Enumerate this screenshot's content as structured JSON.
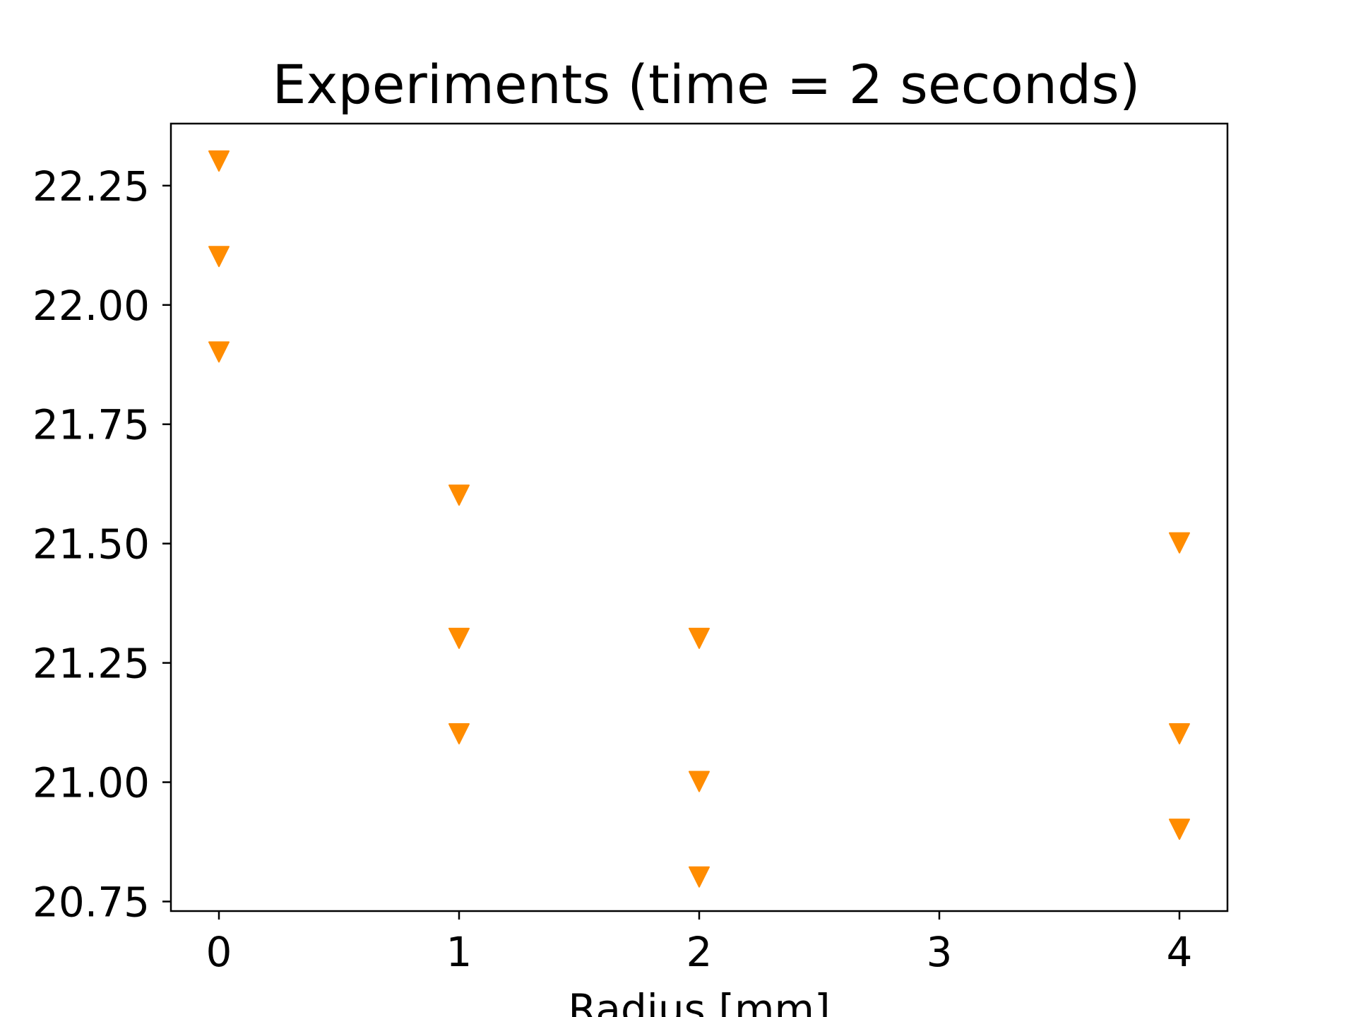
{
  "chart_data": {
    "type": "scatter",
    "title": "Experiments (time = 2 seconds)",
    "xlabel": "Radius [mm]",
    "ylabel": "",
    "xlim": [
      -0.2,
      4.2
    ],
    "ylim": [
      20.73,
      22.38
    ],
    "xticks": [
      0,
      1,
      2,
      3,
      4
    ],
    "xtick_labels": [
      "0",
      "1",
      "2",
      "3",
      "4"
    ],
    "yticks": [
      20.75,
      21.0,
      21.25,
      21.5,
      21.75,
      22.0,
      22.25
    ],
    "ytick_labels": [
      "20.75",
      "21.00",
      "21.25",
      "21.50",
      "21.75",
      "22.00",
      "22.25"
    ],
    "grid": false,
    "marker": "triangle-down",
    "marker_color": "#ff8c00",
    "series": [
      {
        "points": [
          {
            "x": 0,
            "y": 22.3
          },
          {
            "x": 0,
            "y": 22.1
          },
          {
            "x": 0,
            "y": 21.9
          },
          {
            "x": 1,
            "y": 21.6
          },
          {
            "x": 1,
            "y": 21.3
          },
          {
            "x": 1,
            "y": 21.1
          },
          {
            "x": 2,
            "y": 21.3
          },
          {
            "x": 2,
            "y": 21.0
          },
          {
            "x": 2,
            "y": 20.8
          },
          {
            "x": 4,
            "y": 21.5
          },
          {
            "x": 4,
            "y": 21.1
          },
          {
            "x": 4,
            "y": 20.9
          }
        ]
      }
    ]
  }
}
